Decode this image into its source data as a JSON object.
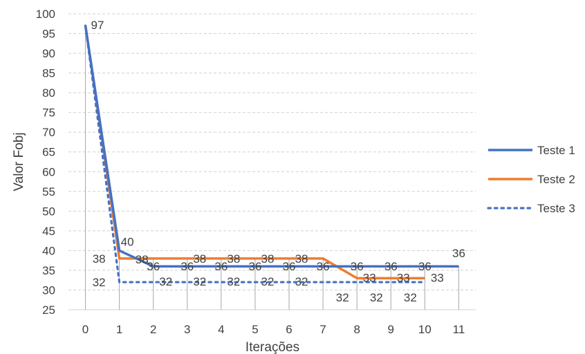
{
  "chart_data": {
    "type": "line",
    "title": "",
    "xlabel": "Iterações",
    "ylabel": "Valor Fobj",
    "x": [
      0,
      1,
      2,
      3,
      4,
      5,
      6,
      7,
      8,
      9,
      10,
      11
    ],
    "ylim": [
      25,
      100
    ],
    "yticks": [
      25,
      30,
      35,
      40,
      45,
      50,
      55,
      60,
      65,
      70,
      75,
      80,
      85,
      90,
      95,
      100
    ],
    "grid": "horizontal dashed",
    "legend_position": "right",
    "series": [
      {
        "name": "Teste 1",
        "color": "#4472C4",
        "style": "solid",
        "x": [
          0,
          1,
          2,
          3,
          4,
          5,
          6,
          7,
          8,
          9,
          10,
          11
        ],
        "values": [
          97,
          40,
          36,
          36,
          36,
          36,
          36,
          36,
          36,
          36,
          36,
          36
        ],
        "labels": [
          "97",
          "40",
          "36",
          "36",
          "36",
          "36",
          "36",
          "36",
          "36",
          "36",
          "36",
          "36"
        ]
      },
      {
        "name": "Teste 2",
        "color": "#ED7D31",
        "style": "solid",
        "x": [
          0,
          1,
          2,
          3,
          4,
          5,
          6,
          7,
          8,
          9,
          10
        ],
        "values": [
          97,
          38,
          38,
          38,
          38,
          38,
          38,
          38,
          33,
          33,
          33
        ],
        "labels": [
          "",
          "38",
          "38",
          "38",
          "38",
          "38",
          "38",
          "",
          "33",
          "33",
          "33"
        ]
      },
      {
        "name": "Teste 3",
        "color": "#4472C4",
        "style": "dotted",
        "x": [
          0,
          1,
          2,
          3,
          4,
          5,
          6,
          7,
          8,
          9,
          10
        ],
        "values": [
          97,
          32,
          32,
          32,
          32,
          32,
          32,
          32,
          32,
          32,
          32
        ],
        "labels": [
          "",
          "32",
          "32",
          "32",
          "32",
          "32",
          "32",
          "",
          "32",
          "32",
          "32"
        ]
      }
    ]
  }
}
